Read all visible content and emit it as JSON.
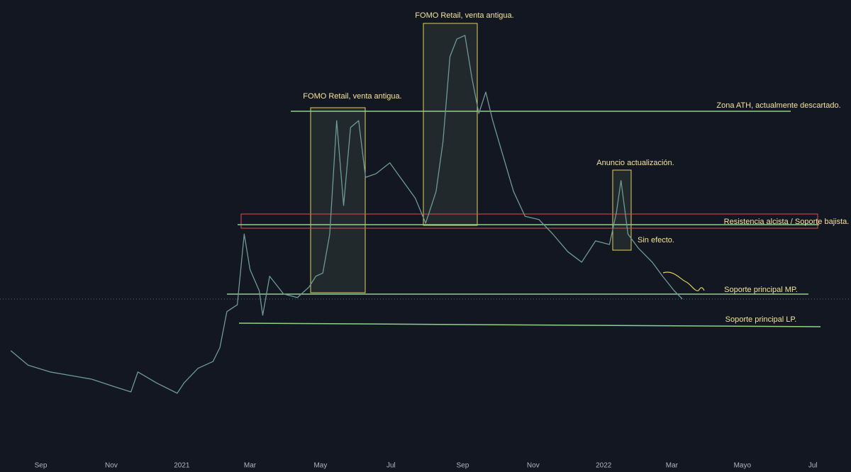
{
  "chart_data": {
    "type": "line",
    "x": [
      5,
      20,
      39,
      57,
      75,
      94,
      109,
      115,
      131,
      149,
      155,
      167,
      180,
      186,
      192,
      201,
      207,
      212,
      220,
      223,
      229,
      241,
      253,
      263,
      269,
      275,
      281,
      287,
      293,
      299,
      306,
      312,
      321,
      333,
      342,
      355,
      364,
      373,
      379,
      385,
      391,
      398,
      404,
      410,
      416,
      422,
      431,
      440,
      450,
      462,
      474,
      487,
      499,
      511,
      523,
      529,
      533,
      539,
      548,
      560,
      569,
      579,
      586
    ],
    "series": [
      {
        "color": "#6f9a93",
        "values": [
          22.7,
          19.5,
          18.0,
          17.2,
          16.4,
          14.8,
          13.6,
          18.0,
          15.6,
          13.3,
          15.6,
          18.8,
          20.3,
          23.4,
          31.3,
          32.8,
          48.4,
          40.6,
          35.9,
          30.5,
          39.1,
          35.2,
          34.4,
          36.7,
          39.1,
          39.8,
          48.4,
          73.4,
          54.7,
          71.9,
          73.4,
          60.9,
          61.7,
          64.1,
          60.9,
          56.3,
          50.8,
          57.8,
          68.8,
          87.5,
          91.4,
          92.2,
          82.8,
          75.0,
          79.7,
          73.4,
          65.6,
          57.8,
          52.3,
          51.6,
          48.4,
          44.5,
          42.2,
          46.9,
          46.1,
          53.1,
          60.2,
          48.4,
          45.3,
          42.2,
          39.1,
          35.9,
          34.1
        ]
      }
    ],
    "xlim": [
      -4.3,
      732
    ],
    "ylim": [
      0,
      100
    ],
    "xticks": [
      {
        "value": 31,
        "label": "Sep"
      },
      {
        "value": 92,
        "label": "Nov"
      },
      {
        "value": 153,
        "label": "2021"
      },
      {
        "value": 212,
        "label": "Mar"
      },
      {
        "value": 273,
        "label": "May"
      },
      {
        "value": 334,
        "label": "Jul"
      },
      {
        "value": 396,
        "label": "Sep"
      },
      {
        "value": 457,
        "label": "Nov"
      },
      {
        "value": 518,
        "label": "2022"
      },
      {
        "value": 577,
        "label": "Mar"
      },
      {
        "value": 638,
        "label": "Mayo"
      },
      {
        "value": 699,
        "label": "Jul"
      }
    ],
    "annotations": [
      "FOMO Retail, venta antigua.",
      "FOMO Retail, venta antigua.",
      "Zona ATH, actualmente descartado.",
      "Anuncio actualización.",
      "Resistencia alcista / Soporte bajista.",
      "Sin efecto.",
      "Soporte principal MP.",
      "Soporte principal LP."
    ]
  }
}
